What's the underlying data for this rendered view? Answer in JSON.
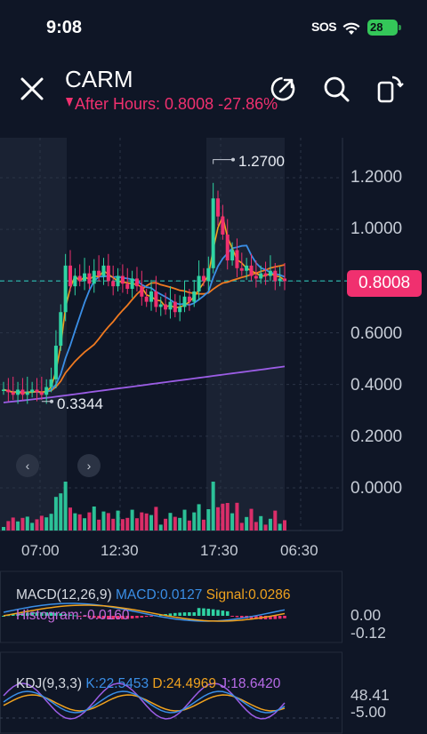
{
  "status_bar": {
    "time": "9:08",
    "sos": "SOS",
    "battery": "28"
  },
  "header": {
    "ticker": "CARM",
    "after_hours": "After Hours: 0.8008 -27.86%"
  },
  "icons": [
    "close-icon",
    "share-icon",
    "search-icon",
    "rotate-icon",
    "wifi-icon",
    "battery-icon",
    "chevron-left-icon",
    "chevron-right-icon"
  ],
  "colors": {
    "background": "#0f1626",
    "down": "#f0306f",
    "up": "#2fd3a3",
    "ma1": "#f0a21e",
    "ma2": "#3a8ee6",
    "ma3": "#f07a20",
    "ma4": "#9b5de5"
  },
  "chart": {
    "y_ticks": [
      "1.2000",
      "1.0000",
      "0.8000",
      "0.6000",
      "0.4000",
      "0.2000",
      "0.0000"
    ],
    "x_ticks": [
      "07:00",
      "12:30",
      "17:30",
      "06:30"
    ],
    "current_price": "0.8008",
    "high": "1.2700",
    "low": "0.3344"
  },
  "chart_data": {
    "type": "line",
    "x": [
      0,
      1,
      2,
      3,
      4,
      5,
      6,
      7,
      8,
      9,
      10,
      11,
      12,
      13,
      14,
      15,
      16,
      17,
      18,
      19,
      20,
      21,
      22,
      23,
      24,
      25,
      26,
      27,
      28,
      29,
      30,
      31,
      32,
      33,
      34,
      35,
      36,
      37,
      38,
      39,
      40,
      41,
      42,
      43,
      44,
      45,
      46,
      47,
      48,
      49,
      50,
      51,
      52,
      53,
      54,
      55,
      56,
      57,
      58,
      59
    ],
    "series": [
      {
        "close": [
          0.38,
          0.37,
          0.36,
          0.38,
          0.36,
          0.37,
          0.38,
          0.37,
          0.36,
          0.39,
          0.42,
          0.55,
          0.68,
          0.86,
          0.78,
          0.82,
          0.8,
          0.83,
          0.79,
          0.84,
          0.82,
          0.86,
          0.8,
          0.78,
          0.82,
          0.79,
          0.77,
          0.81,
          0.78,
          0.74,
          0.72,
          0.76,
          0.7,
          0.71,
          0.69,
          0.72,
          0.68,
          0.7,
          0.74,
          0.72,
          0.76,
          0.82,
          0.8,
          0.85,
          1.12,
          1.05,
          0.98,
          0.88,
          0.92,
          0.85,
          0.84,
          0.86,
          0.82,
          0.81,
          0.83,
          0.82,
          0.84,
          0.8,
          0.81,
          0.8
        ]
      }
    ],
    "ylim": [
      -0.15,
      1.35
    ]
  },
  "macd": {
    "label": "MACD(12,26,9)",
    "macd": "MACD:0.0127",
    "signal": "Signal:0.0286",
    "histogram": "Histogram:-0.0160",
    "axis_top": "0.00",
    "axis_bottom": "-0.12"
  },
  "kdj": {
    "label": "KDJ(9,3,3)",
    "k": "K:22.5453",
    "d": "D:24.4969",
    "j": "J:18.6420",
    "axis_top": "48.41",
    "axis_bottom": "-5.00"
  }
}
